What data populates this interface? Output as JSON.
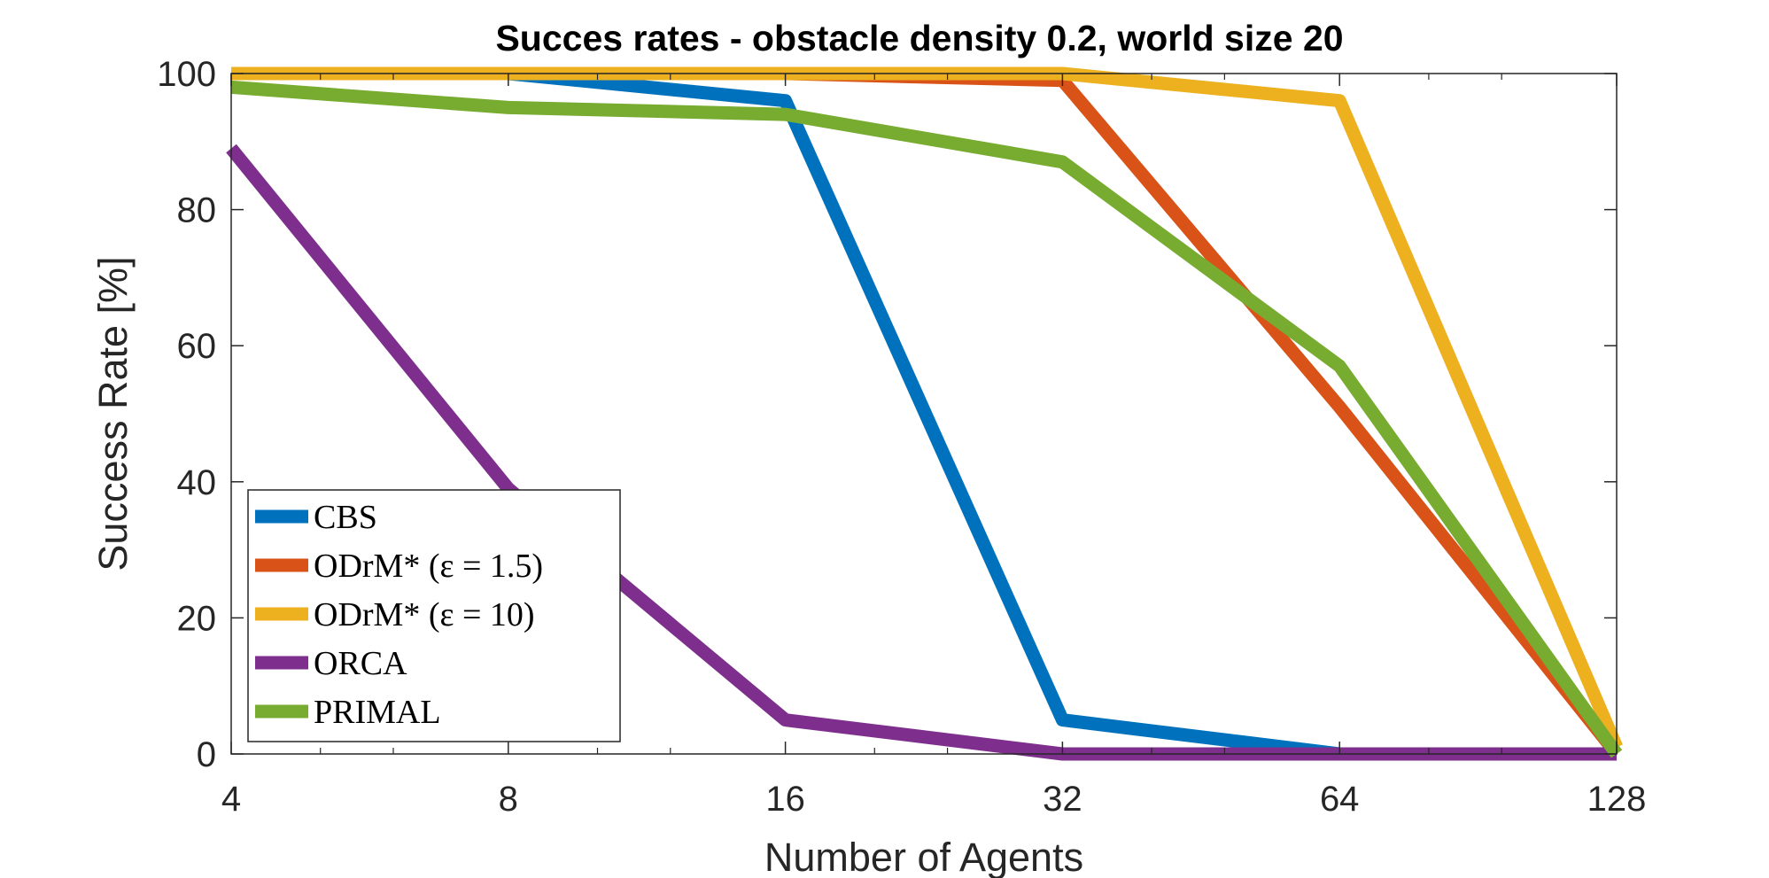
{
  "chart_data": {
    "type": "line",
    "title": "Succes rates - obstacle density 0.2, world size 20",
    "xlabel": "Number of Agents",
    "ylabel": "Success Rate [%]",
    "x_scale": "log2",
    "x": [
      4,
      8,
      16,
      32,
      64,
      128
    ],
    "xticks": [
      "4",
      "8",
      "16",
      "32",
      "64",
      "128"
    ],
    "yticks": [
      "0",
      "20",
      "40",
      "60",
      "80",
      "100"
    ],
    "xlim": [
      4,
      128
    ],
    "ylim": [
      0,
      100
    ],
    "grid": false,
    "legend_position": "bottom-left",
    "series": [
      {
        "name": "CBS",
        "color": "#0072BD",
        "values": [
          100,
          100,
          96,
          5,
          0,
          0
        ]
      },
      {
        "name": "ODrM* (ε = 1.5)",
        "color": "#D95319",
        "values": [
          100,
          100,
          100,
          99,
          51,
          0
        ]
      },
      {
        "name": "ODrM* (ε = 10)",
        "color": "#EDB120",
        "values": [
          100,
          100,
          100,
          100,
          96,
          1
        ]
      },
      {
        "name": "ORCA",
        "color": "#7E2F8E",
        "values": [
          89,
          39,
          5,
          0,
          0,
          0
        ]
      },
      {
        "name": "PRIMAL",
        "color": "#77AC30",
        "values": [
          98,
          95,
          94,
          87,
          57,
          0
        ]
      }
    ]
  }
}
